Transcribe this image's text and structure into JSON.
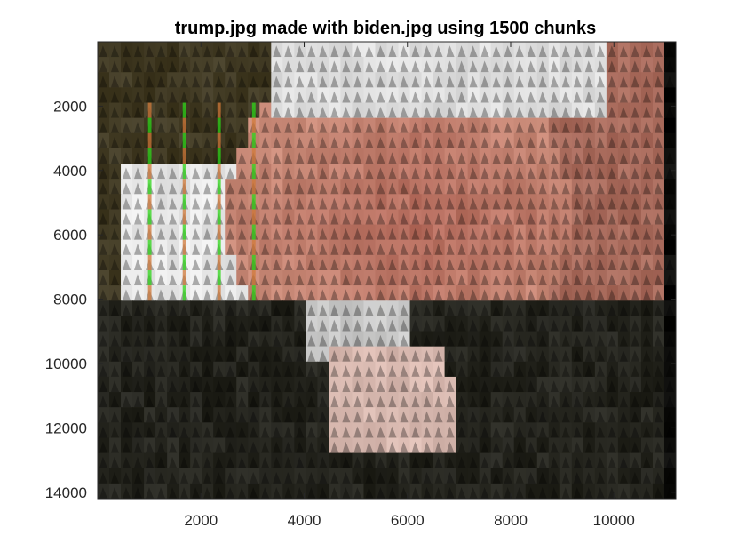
{
  "chart_data": {
    "type": "heatmap",
    "title": "trump.jpg made with biden.jpg using 1500 chunks",
    "xlabel": "",
    "ylabel": "",
    "xlim": [
      0,
      11200
    ],
    "ylim": [
      0,
      14200
    ],
    "y_reversed": true,
    "x_ticks": [
      2000,
      4000,
      6000,
      8000,
      10000
    ],
    "x_tick_labels": [
      "2000",
      "4000",
      "6000",
      "8000",
      "10000"
    ],
    "y_ticks": [
      2000,
      4000,
      6000,
      8000,
      10000,
      12000,
      14000
    ],
    "y_tick_labels": [
      "2000",
      "4000",
      "6000",
      "8000",
      "10000",
      "12000",
      "14000"
    ],
    "grid": false,
    "image": {
      "description_tiles": "photomosaic",
      "tile_grid": {
        "cols": 50,
        "rows": 30
      },
      "colors": {
        "dark_bg": "#2a2a22",
        "skin": "#c98a78",
        "white": "#e8e8e8",
        "shadow": "#1a1a16",
        "green_stripe": "#2fd61a",
        "orange_stripe": "#d07a3a"
      }
    }
  }
}
